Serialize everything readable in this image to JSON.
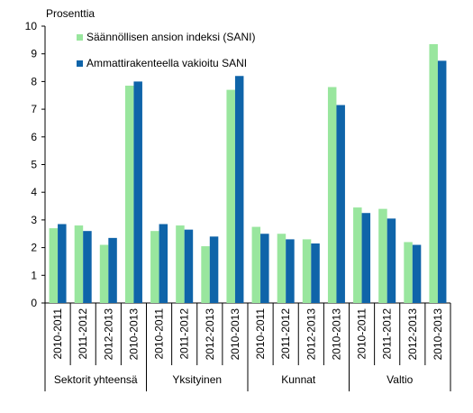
{
  "chart_data": {
    "type": "bar",
    "unit_label": "Prosenttia",
    "ylim": [
      0,
      10
    ],
    "yticks": [
      0,
      1,
      2,
      3,
      4,
      5,
      6,
      7,
      8,
      9,
      10
    ],
    "grid": false,
    "legend_position": "top-left",
    "groups": [
      {
        "label": "Sektorit yhteensä",
        "categories": [
          "2010-2011",
          "2011-2012",
          "2012-2013",
          "2010-2013"
        ]
      },
      {
        "label": "Yksityinen",
        "categories": [
          "2010-2011",
          "2011-2012",
          "2012-2013",
          "2010-2013"
        ]
      },
      {
        "label": "Kunnat",
        "categories": [
          "2010-2011",
          "2011-2012",
          "2012-2013",
          "2010-2013"
        ]
      },
      {
        "label": "Valtio",
        "categories": [
          "2010-2011",
          "2011-2012",
          "2012-2013",
          "2010-2013"
        ]
      }
    ],
    "series": [
      {
        "name": "Säännöllisen ansion indeksi (SANI)",
        "color": "#99e69e",
        "values": [
          2.7,
          2.8,
          2.1,
          7.85,
          2.6,
          2.8,
          2.05,
          7.7,
          2.75,
          2.5,
          2.3,
          7.8,
          3.45,
          3.4,
          2.2,
          9.35
        ]
      },
      {
        "name": "Ammattirakenteella vakioitu SANI",
        "color": "#0f64a9",
        "values": [
          2.85,
          2.6,
          2.35,
          8.0,
          2.85,
          2.65,
          2.4,
          8.2,
          2.5,
          2.3,
          2.15,
          7.15,
          3.25,
          3.05,
          2.1,
          8.75
        ]
      }
    ]
  }
}
